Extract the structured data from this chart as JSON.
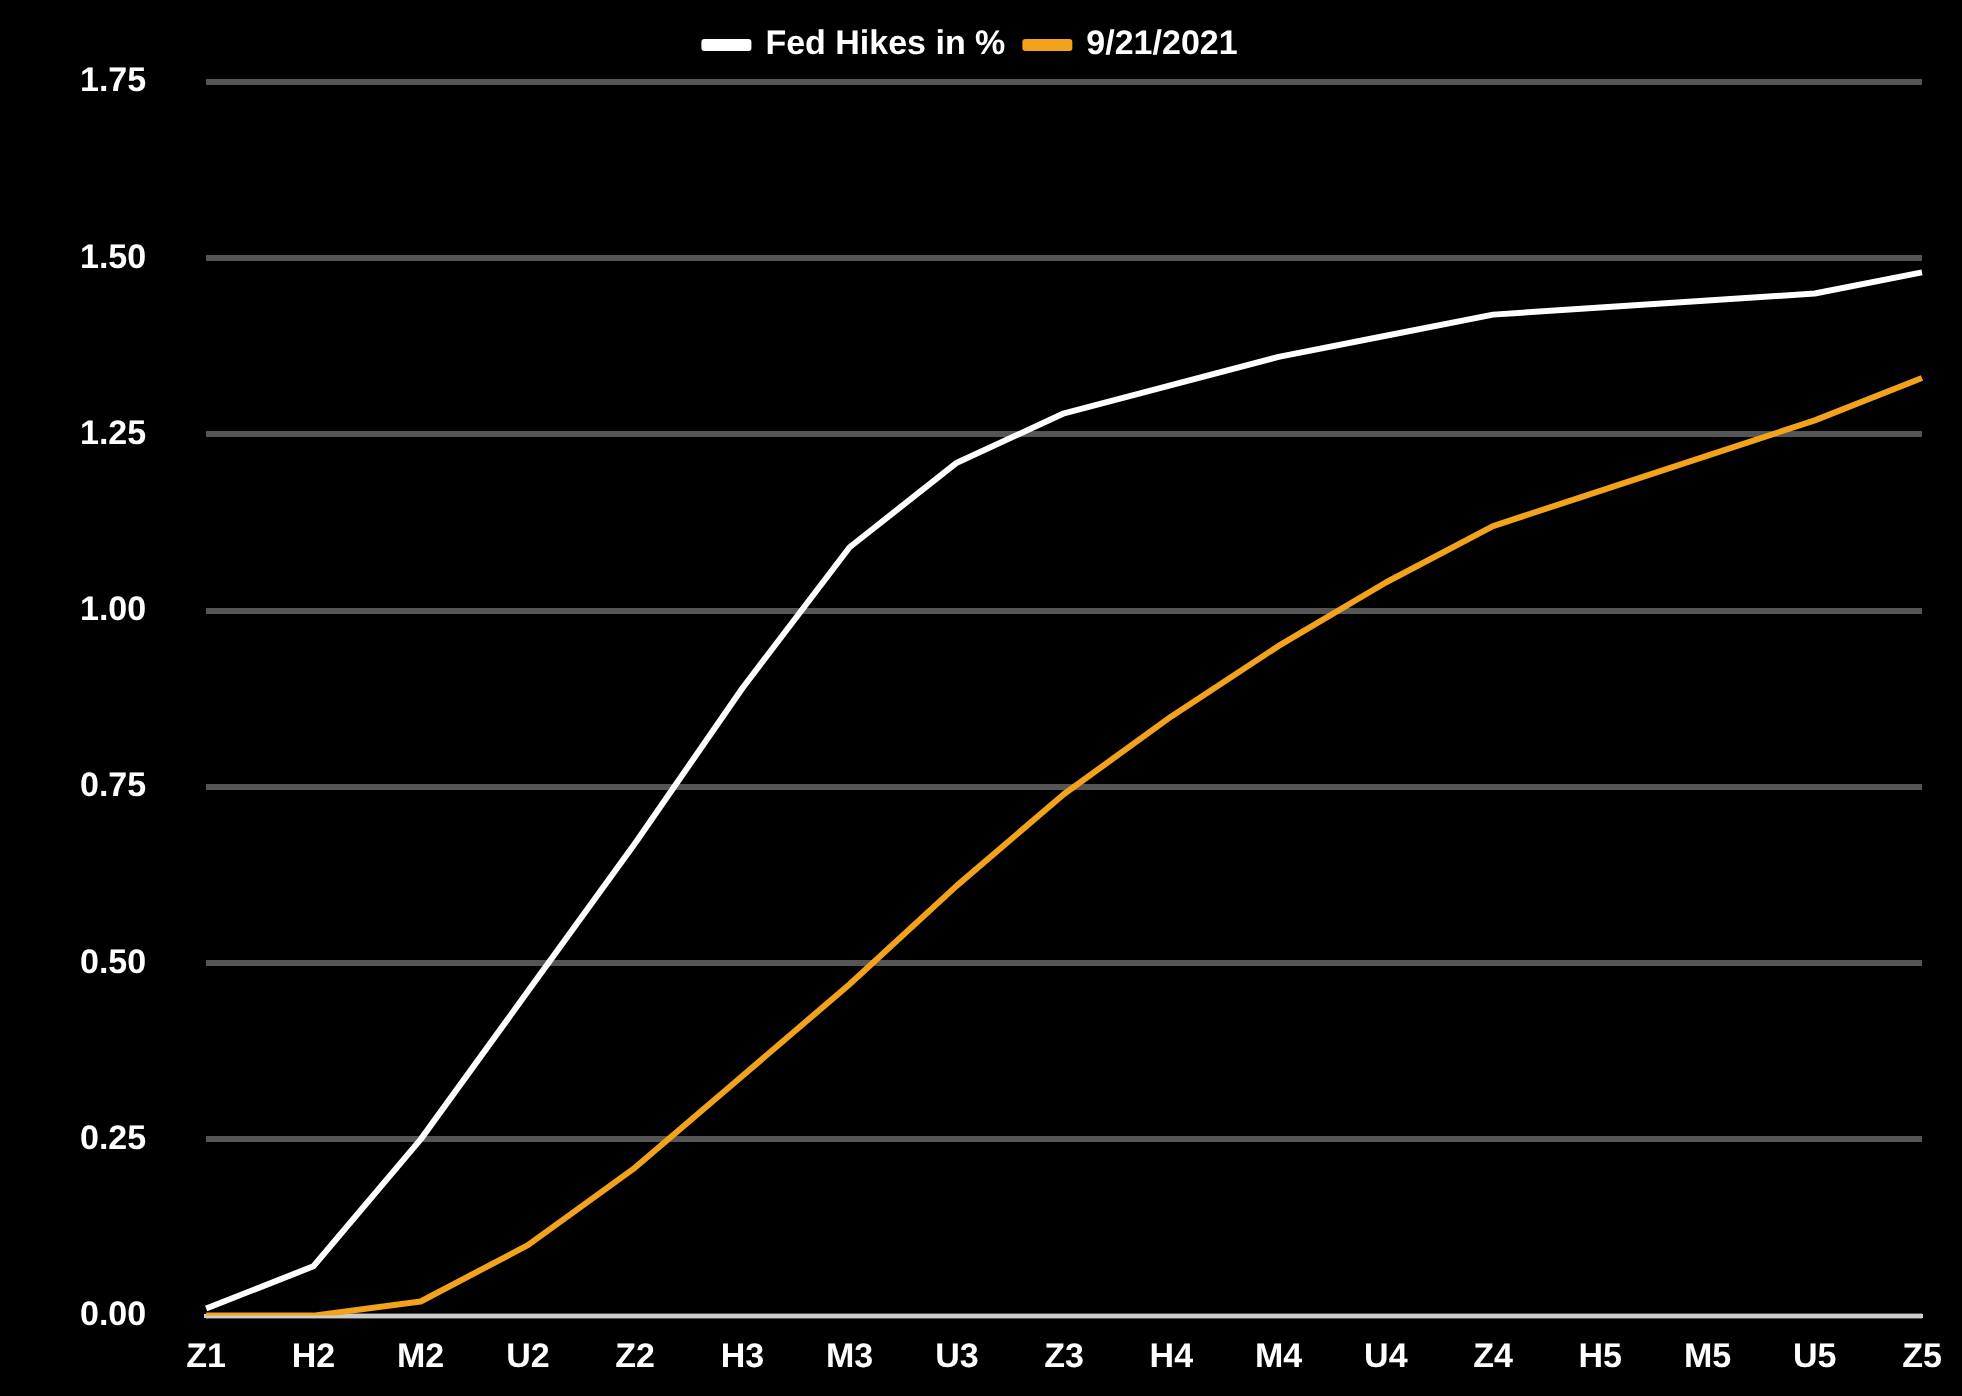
{
  "chart_data": {
    "type": "line",
    "categories": [
      "Z1",
      "H2",
      "M2",
      "U2",
      "Z2",
      "H3",
      "M3",
      "U3",
      "Z3",
      "H4",
      "M4",
      "U4",
      "Z4",
      "H5",
      "M5",
      "U5",
      "Z5"
    ],
    "series": [
      {
        "name": "Fed Hikes in %",
        "color": "#ffffff",
        "values": [
          0.01,
          0.07,
          0.25,
          0.46,
          0.67,
          0.89,
          1.09,
          1.21,
          1.28,
          1.32,
          1.36,
          1.39,
          1.42,
          1.43,
          1.44,
          1.45,
          1.48
        ]
      },
      {
        "name": "9/21/2021",
        "color": "#f2a31b",
        "values": [
          0,
          0,
          0.02,
          0.1,
          0.21,
          0.34,
          0.47,
          0.61,
          0.74,
          0.85,
          0.95,
          1.04,
          1.12,
          1.17,
          1.22,
          1.27,
          1.33
        ]
      }
    ],
    "ylim": [
      0,
      1.75
    ],
    "yticks": [
      {
        "value": 0,
        "label": "0.00"
      },
      {
        "value": 0.25,
        "label": "0.25"
      },
      {
        "value": 0.5,
        "label": "0.50"
      },
      {
        "value": 0.75,
        "label": "0.75"
      },
      {
        "value": 1,
        "label": "1.00"
      },
      {
        "value": 1.25,
        "label": "1.25"
      },
      {
        "value": 1.5,
        "label": "1.50"
      },
      {
        "value": 1.75,
        "label": "1.75"
      }
    ],
    "grid": "y",
    "legend": "top",
    "marker": "none",
    "line_style": "solid"
  }
}
